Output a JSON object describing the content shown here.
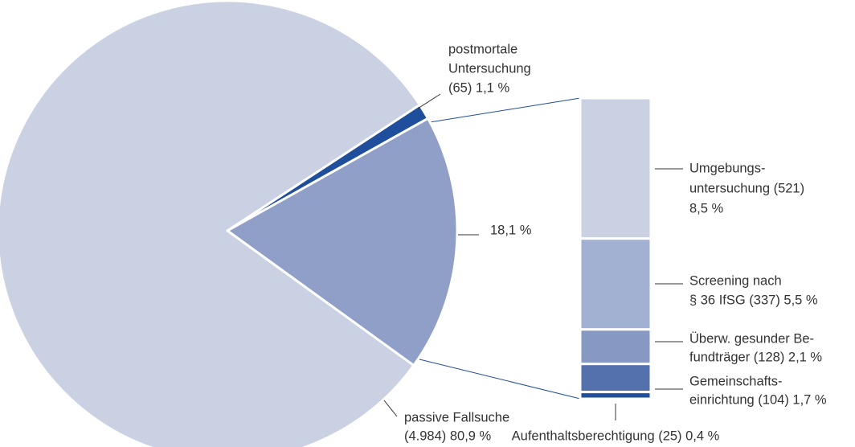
{
  "chart_data": {
    "type": "pie-of-bar",
    "pie": {
      "values": [
        1.1,
        18.1,
        80.9
      ],
      "colors": [
        "#1f4e9c",
        "#8f9fc8",
        "#c9d1e2"
      ],
      "labels": [
        [
          "postmortale",
          "Untersuchung",
          "(65) 1,1 %"
        ],
        [
          "18,1 %"
        ],
        [
          "passive Fallsuche",
          "(4.984) 80,9 %"
        ]
      ]
    },
    "bar": {
      "values": [
        521,
        337,
        128,
        104,
        25
      ],
      "colors": [
        "#c9d1e2",
        "#a2b1d1",
        "#8798c3",
        "#5470ad",
        "#1f4e9c"
      ],
      "labels": [
        [
          "Umgebungs-",
          "untersuchung (521)",
          "8,5 %"
        ],
        [
          "Screening nach",
          "§ 36 IfSG (337) 5,5 %"
        ],
        [
          "Überw. gesunder Be-",
          "fundträger (128) 2,1 %"
        ],
        [
          "Gemeinschafts-",
          "einrichtung (104) 1,7 %"
        ],
        [
          "Aufenthaltsberechtigung (25) 0,4 %"
        ]
      ]
    }
  }
}
